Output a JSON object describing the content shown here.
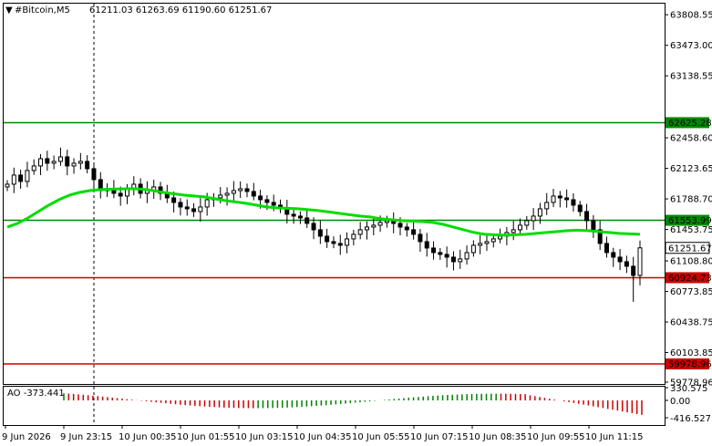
{
  "header": {
    "symbol": "#Bitcoin,M5",
    "ohlc": "61211.03 61263.69 61190.60 61251.67"
  },
  "ao": {
    "label": "AO -373.441",
    "ticks": [
      "330.575",
      "0.00",
      "-416.527"
    ]
  },
  "colors": {
    "background": "#ffffff",
    "bull_candle": "#000000",
    "bear_candle": "#000000",
    "moving_average": "#00dd00",
    "support_lines": "#cc0000",
    "resistance_lines": "#008800",
    "ao_up": "#008000",
    "ao_down": "#cc0000"
  },
  "chart_data": {
    "type": "candlestick",
    "symbol": "#Bitcoin",
    "timeframe": "M5",
    "y_ticks": [
      "63808.55",
      "63473.00",
      "63138.55",
      "62458.60",
      "62123.65",
      "61788.70",
      "61453.75",
      "61108.80",
      "60773.85",
      "60438.75",
      "60103.85",
      "59778.96"
    ],
    "x_labels": [
      "9 Jun 2026",
      "9 Jun 23:15",
      "10 Jun 00:35",
      "10 Jun 01:55",
      "10 Jun 03:15",
      "10 Jun 04:35",
      "10 Jun 05:55",
      "10 Jun 07:15",
      "10 Jun 08:35",
      "10 Jun 09:55",
      "10 Jun 11:15"
    ],
    "ylim": [
      59778.96,
      63950
    ],
    "levels": [
      {
        "value": 62625.28,
        "label": "62625.28",
        "color": "#008800"
      },
      {
        "value": 61553.99,
        "label": "61553.99",
        "color": "#008800"
      },
      {
        "value": 60924.73,
        "label": "60924.73",
        "color": "#cc0000"
      },
      {
        "value": 59978.96,
        "label": "59978.96",
        "color": "#cc0000"
      }
    ],
    "current_price": {
      "value": 61251.67,
      "label": "61251.67"
    },
    "close": [
      61950,
      62050,
      61980,
      62100,
      62150,
      62230,
      62180,
      62200,
      62250,
      62150,
      62180,
      62200,
      62120,
      62000,
      61880,
      61900,
      61850,
      61820,
      61900,
      61950,
      61850,
      61880,
      61920,
      61850,
      61800,
      61750,
      61700,
      61680,
      61650,
      61700,
      61780,
      61800,
      61830,
      61850,
      61880,
      61900,
      61870,
      61820,
      61780,
      61750,
      61720,
      61680,
      61620,
      61600,
      61580,
      61520,
      61450,
      61380,
      61320,
      61300,
      61280,
      61350,
      61400,
      61450,
      61480,
      61500,
      61530,
      61550,
      61520,
      61480,
      61450,
      61400,
      61320,
      61250,
      61200,
      61180,
      61150,
      61100,
      61130,
      61200,
      61280,
      61300,
      61320,
      61350,
      61380,
      61420,
      61450,
      61500,
      61550,
      61600,
      61680,
      61750,
      61820,
      61800,
      61780,
      61720,
      61650,
      61550,
      61450,
      61300,
      61200,
      61150,
      61100,
      61050,
      60950,
      61251.67
    ],
    "ma": [
      61480,
      61520,
      61580,
      61650,
      61720,
      61780,
      61830,
      61860,
      61880,
      61890,
      61895,
      61898,
      61900,
      61895,
      61880,
      61860,
      61845,
      61830,
      61820,
      61810,
      61790,
      61770,
      61755,
      61740,
      61720,
      61700,
      61690,
      61685,
      61680,
      61670,
      61660,
      61645,
      61630,
      61615,
      61600,
      61590,
      61570,
      61560,
      61550,
      61545,
      61540,
      61530,
      61510,
      61480,
      61450,
      61420,
      61400,
      61395,
      61390,
      61395,
      61400,
      61410,
      61420,
      61430,
      61440,
      61445,
      61440,
      61430,
      61420,
      61410,
      61405,
      61400
    ]
  }
}
